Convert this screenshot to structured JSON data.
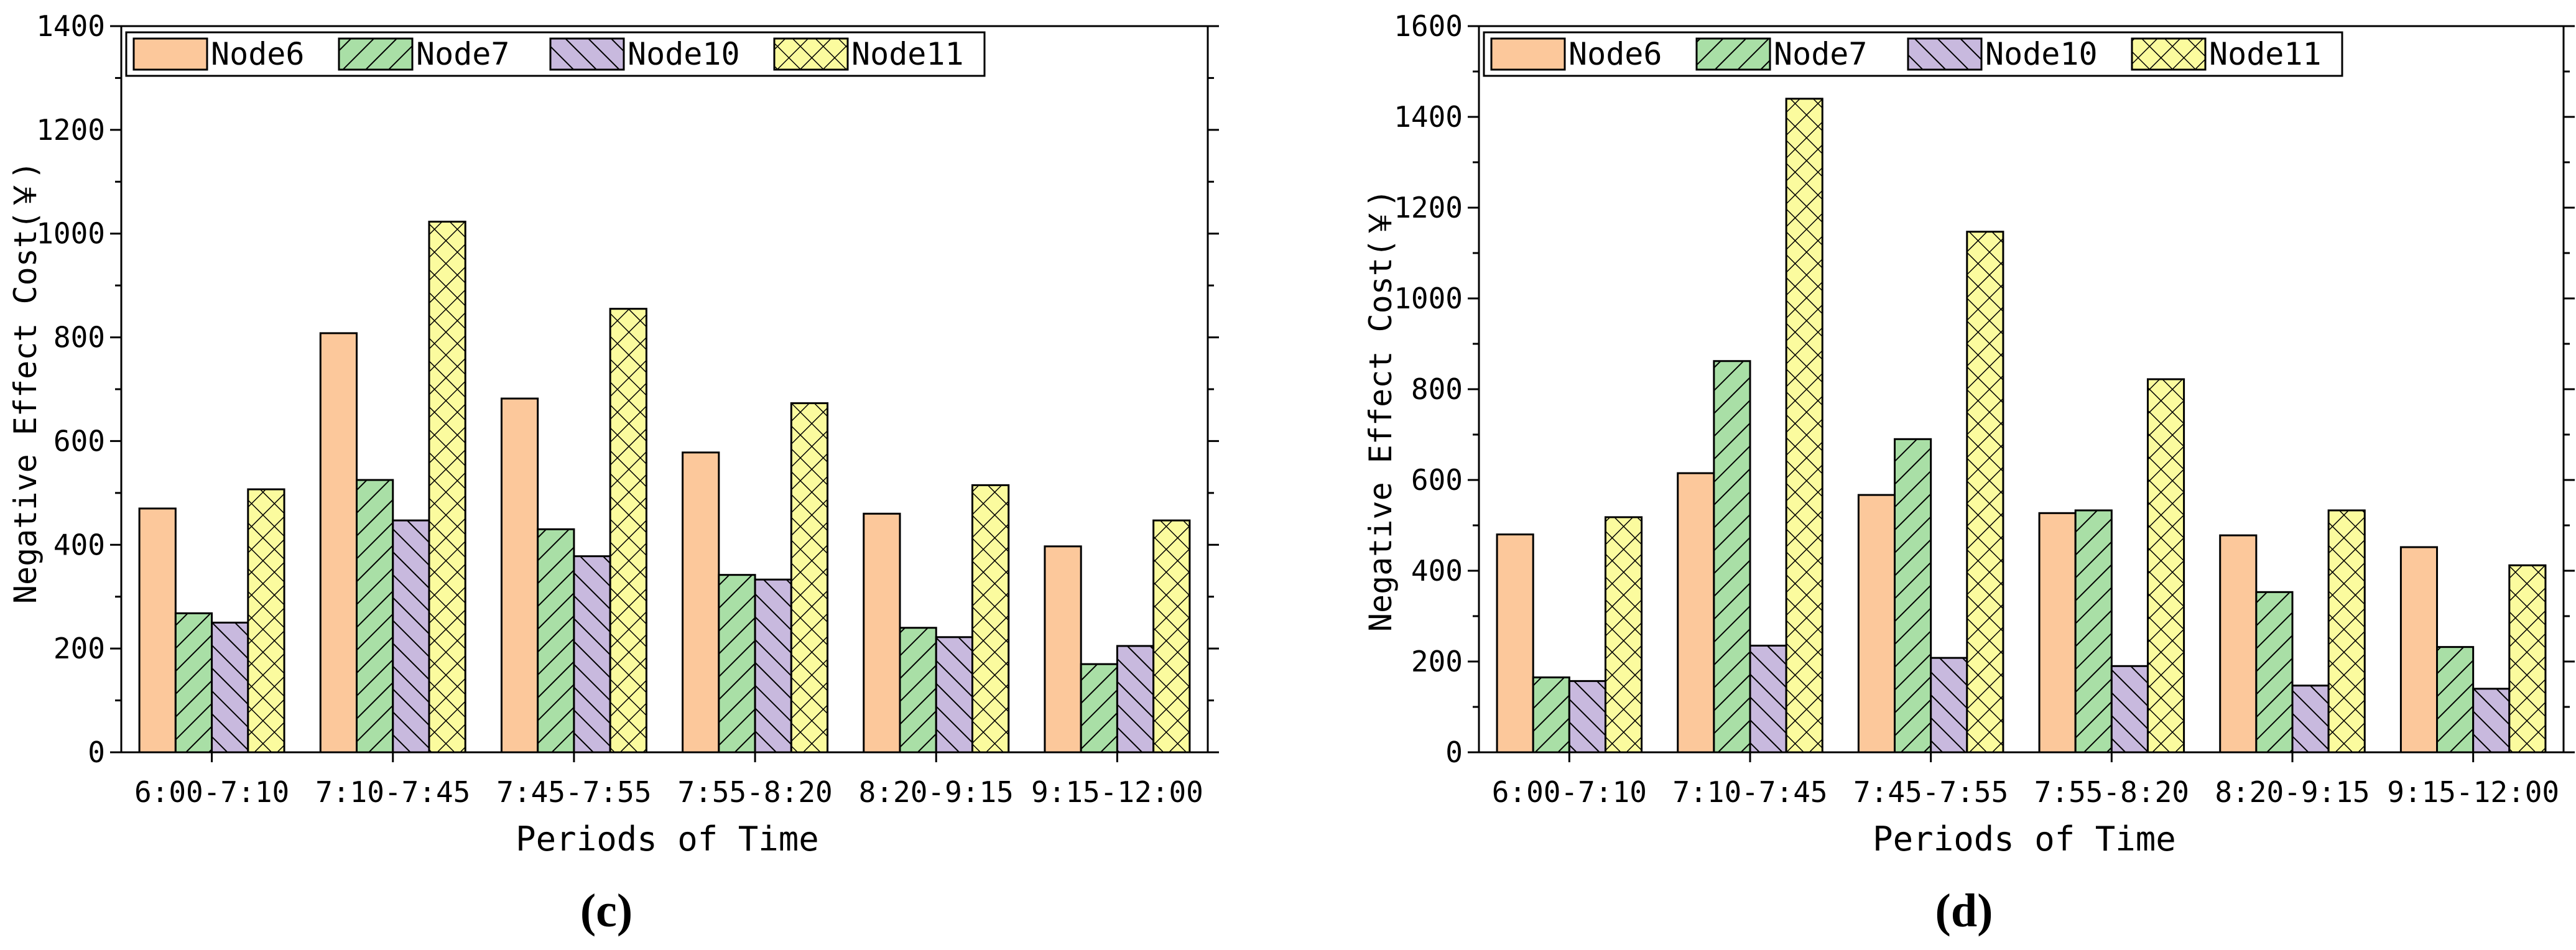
{
  "colors": {
    "node6": "#FCC89B",
    "node7": "#A9DFA6",
    "node10": "#C8B9DE",
    "node11": "#FBFB9E",
    "axis": "#000000"
  },
  "chart_data": [
    {
      "type": "bar",
      "panel_label": "(c)",
      "categories": [
        "6:00-7:10",
        "7:10-7:45",
        "7:45-7:55",
        "7:55-8:20",
        "8:20-9:15",
        "9:15-12:00"
      ],
      "series": [
        {
          "name": "Node6",
          "pattern": "none",
          "values": [
            470,
            808,
            682,
            578,
            460,
            397
          ]
        },
        {
          "name": "Node7",
          "pattern": "fwd",
          "values": [
            268,
            525,
            430,
            342,
            240,
            170
          ]
        },
        {
          "name": "Node10",
          "pattern": "back",
          "values": [
            250,
            447,
            378,
            333,
            222,
            205
          ]
        },
        {
          "name": "Node11",
          "pattern": "cross",
          "values": [
            507,
            1023,
            855,
            673,
            515,
            447
          ]
        }
      ],
      "xlabel": "Periods of Time",
      "ylabel": "Negative Effect Cost(￥)",
      "ylim": [
        0,
        1400
      ],
      "yticks": [
        0,
        200,
        400,
        600,
        800,
        1000,
        1200,
        1400
      ],
      "grid": false,
      "legend_position": "top-left"
    },
    {
      "type": "bar",
      "panel_label": "(d)",
      "categories": [
        "6:00-7:10",
        "7:10-7:45",
        "7:45-7:55",
        "7:55-8:20",
        "8:20-9:15",
        "9:15-12:00"
      ],
      "series": [
        {
          "name": "Node6",
          "pattern": "none",
          "values": [
            480,
            615,
            567,
            527,
            478,
            452
          ]
        },
        {
          "name": "Node7",
          "pattern": "fwd",
          "values": [
            165,
            862,
            690,
            533,
            353,
            232
          ]
        },
        {
          "name": "Node10",
          "pattern": "back",
          "values": [
            157,
            235,
            208,
            190,
            147,
            140
          ]
        },
        {
          "name": "Node11",
          "pattern": "cross",
          "values": [
            518,
            1440,
            1147,
            822,
            533,
            412
          ]
        }
      ],
      "xlabel": "Periods of Time",
      "ylabel": "Negative Effect Cost(￥)",
      "ylim": [
        0,
        1600
      ],
      "yticks": [
        0,
        200,
        400,
        600,
        800,
        1000,
        1200,
        1400,
        1600
      ],
      "grid": false,
      "legend_position": "top-left"
    }
  ]
}
